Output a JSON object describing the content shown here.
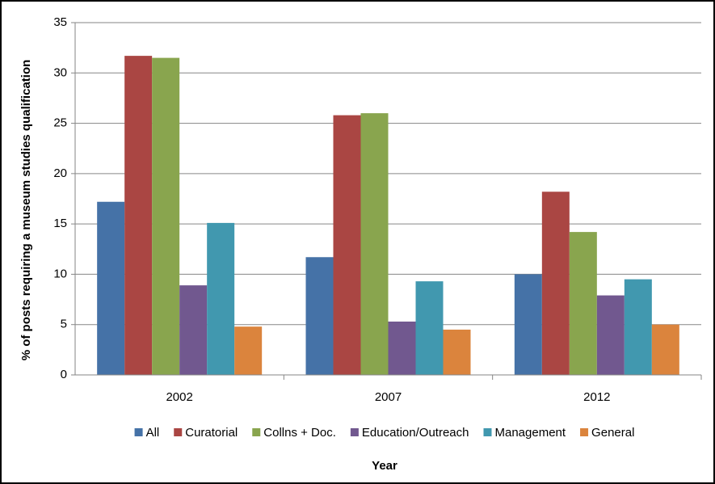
{
  "chart_data": {
    "type": "bar",
    "categories": [
      "2002",
      "2007",
      "2012"
    ],
    "series": [
      {
        "name": "All",
        "color": "#4572a7",
        "values": [
          17.2,
          11.7,
          10.0
        ]
      },
      {
        "name": "Curatorial",
        "color": "#aa4643",
        "values": [
          31.7,
          25.8,
          18.2
        ]
      },
      {
        "name": "Collns + Doc.",
        "color": "#89a54e",
        "values": [
          31.5,
          26.0,
          14.2
        ]
      },
      {
        "name": "Education/Outreach",
        "color": "#71588f",
        "values": [
          8.9,
          5.3,
          7.9
        ]
      },
      {
        "name": "Management",
        "color": "#4198af",
        "values": [
          15.1,
          9.3,
          9.5
        ]
      },
      {
        "name": "General",
        "color": "#db843d",
        "values": [
          4.8,
          4.5,
          5.0
        ]
      }
    ],
    "xlabel": "Year",
    "ylabel": "% of posts requiring a museum studies qualification",
    "ylim": [
      0,
      35
    ],
    "yticks": [
      0,
      5,
      10,
      15,
      20,
      25,
      30,
      35
    ],
    "grid": true,
    "legend": "bottom"
  }
}
